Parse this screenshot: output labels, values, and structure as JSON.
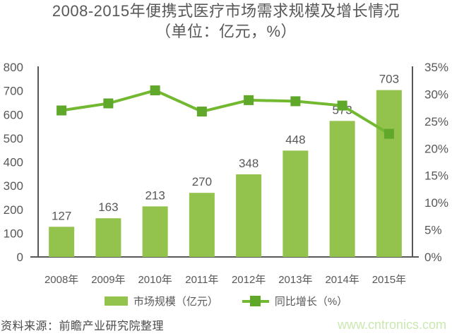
{
  "source": "资料来源：前瞻产业研究院整理",
  "watermark": "www.cntronics.com",
  "colors": {
    "bar": "#94C34D",
    "line": "#73B831",
    "marker": "#5FA82A",
    "axis": "#595757",
    "text": "#595757",
    "category_text": "#595757",
    "source_text": "#4a4a4a",
    "watermark": "#CBE8B0"
  },
  "chart_data": {
    "type": "bar+line",
    "title": "2008-2015年便携式医疗市场需求规模及增长情况",
    "subtitle": "（单位：亿元，%）",
    "categories": [
      "2008年",
      "2009年",
      "2010年",
      "2011年",
      "2012年",
      "2013年",
      "2014年",
      "2015年"
    ],
    "series": [
      {
        "name": "市场规模（亿元）",
        "type": "bar",
        "axis": "left",
        "values": [
          127,
          163,
          213,
          270,
          348,
          448,
          573,
          703
        ],
        "show_labels": true
      },
      {
        "name": "同比增长（%）",
        "type": "line",
        "axis": "right",
        "values": [
          27,
          28.3,
          30.7,
          26.8,
          28.9,
          28.7,
          27.9,
          22.7
        ],
        "show_labels": false
      }
    ],
    "left_axis": {
      "min": 0,
      "max": 800,
      "step": 100,
      "tick_labels": [
        "800",
        "700",
        "600",
        "500",
        "400",
        "300",
        "200",
        "100",
        "0"
      ]
    },
    "right_axis": {
      "min": 0,
      "max": 35,
      "step": 5,
      "tick_labels": [
        "35%",
        "30%",
        "25%",
        "20%",
        "15%",
        "10%",
        "5%",
        "0%"
      ]
    },
    "grid": false,
    "legend_position": "bottom"
  }
}
